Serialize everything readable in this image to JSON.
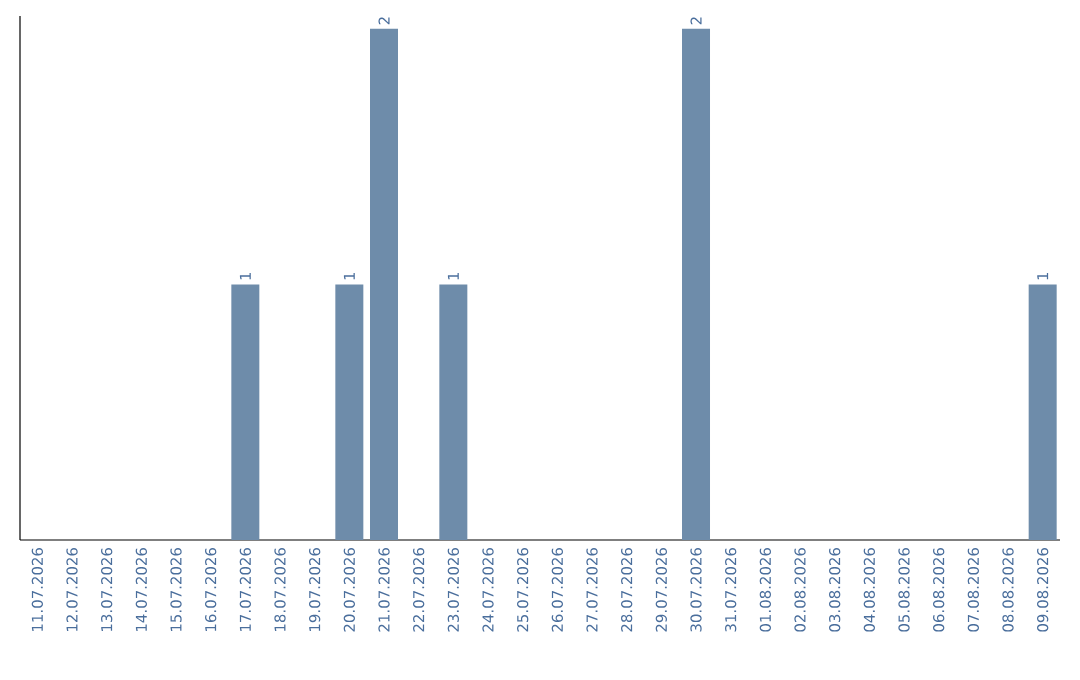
{
  "chart_data": {
    "type": "bar",
    "categories": [
      "11.07.2026",
      "12.07.2026",
      "13.07.2026",
      "14.07.2026",
      "15.07.2026",
      "16.07.2026",
      "17.07.2026",
      "18.07.2026",
      "19.07.2026",
      "20.07.2026",
      "21.07.2026",
      "22.07.2026",
      "23.07.2026",
      "24.07.2026",
      "25.07.2026",
      "26.07.2026",
      "27.07.2026",
      "28.07.2026",
      "29.07.2026",
      "30.07.2026",
      "31.07.2026",
      "01.08.2026",
      "02.08.2026",
      "03.08.2026",
      "04.08.2026",
      "05.08.2026",
      "06.08.2026",
      "07.08.2026",
      "08.08.2026",
      "09.08.2026"
    ],
    "values": [
      0,
      0,
      0,
      0,
      0,
      0,
      1,
      0,
      0,
      1,
      2,
      0,
      1,
      0,
      0,
      0,
      0,
      0,
      0,
      2,
      0,
      0,
      0,
      0,
      0,
      0,
      0,
      0,
      0,
      1
    ],
    "value_labels": [
      null,
      null,
      null,
      null,
      null,
      null,
      "1",
      null,
      null,
      "1",
      "2",
      null,
      "1",
      null,
      null,
      null,
      null,
      null,
      null,
      "2",
      null,
      null,
      null,
      null,
      null,
      null,
      null,
      null,
      null,
      "1"
    ],
    "color": "#6e8caa",
    "ylim": [
      0,
      2.05
    ],
    "tick_labels": "x"
  }
}
